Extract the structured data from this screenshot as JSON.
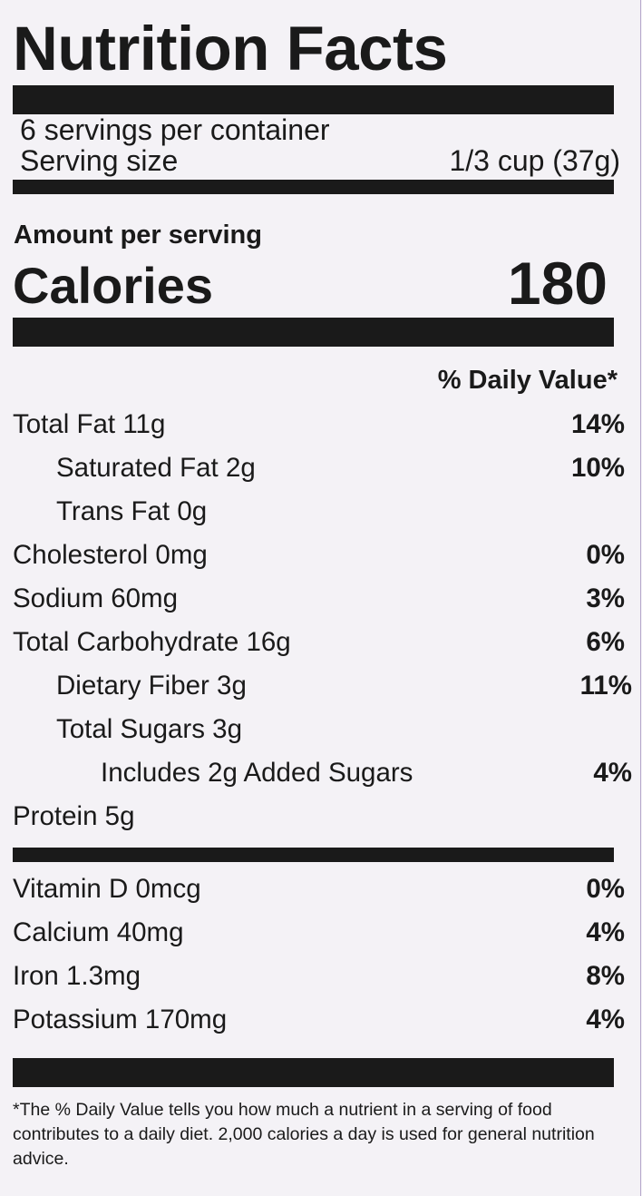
{
  "label": {
    "title": "Nutrition Facts",
    "servings_per_container": "6 servings per container",
    "serving_size_label": "Serving size",
    "serving_size_value": "1/3 cup (37g)",
    "amount_per_serving": "Amount per serving",
    "calories_label": "Calories",
    "calories_value": "180",
    "daily_value_header": "% Daily Value*",
    "nutrients": [
      {
        "name": "Total Fat 11g",
        "dv": "14%"
      },
      {
        "name": "Saturated Fat 2g",
        "dv": "10%"
      },
      {
        "name": "Trans Fat 0g",
        "dv": ""
      },
      {
        "name": "Cholesterol 0mg",
        "dv": "0%"
      },
      {
        "name": "Sodium 60mg",
        "dv": "3%"
      },
      {
        "name": "Total Carbohydrate 16g",
        "dv": "6%"
      },
      {
        "name": "Dietary Fiber 3g",
        "dv": "11%"
      },
      {
        "name": "Total Sugars 3g",
        "dv": ""
      },
      {
        "name": "Includes 2g Added Sugars",
        "dv": "4%"
      },
      {
        "name": "Protein 5g",
        "dv": ""
      }
    ],
    "vitamins": [
      {
        "name": "Vitamin D 0mcg",
        "dv": "0%"
      },
      {
        "name": "Calcium 40mg",
        "dv": "4%"
      },
      {
        "name": "Iron 1.3mg",
        "dv": "8%"
      },
      {
        "name": "Potassium 170mg",
        "dv": "4%"
      }
    ],
    "footnote": "*The % Daily Value tells you how much a nutrient in a serving of food contributes to a daily diet. 2,000 calories a day is used for general nutrition advice."
  }
}
